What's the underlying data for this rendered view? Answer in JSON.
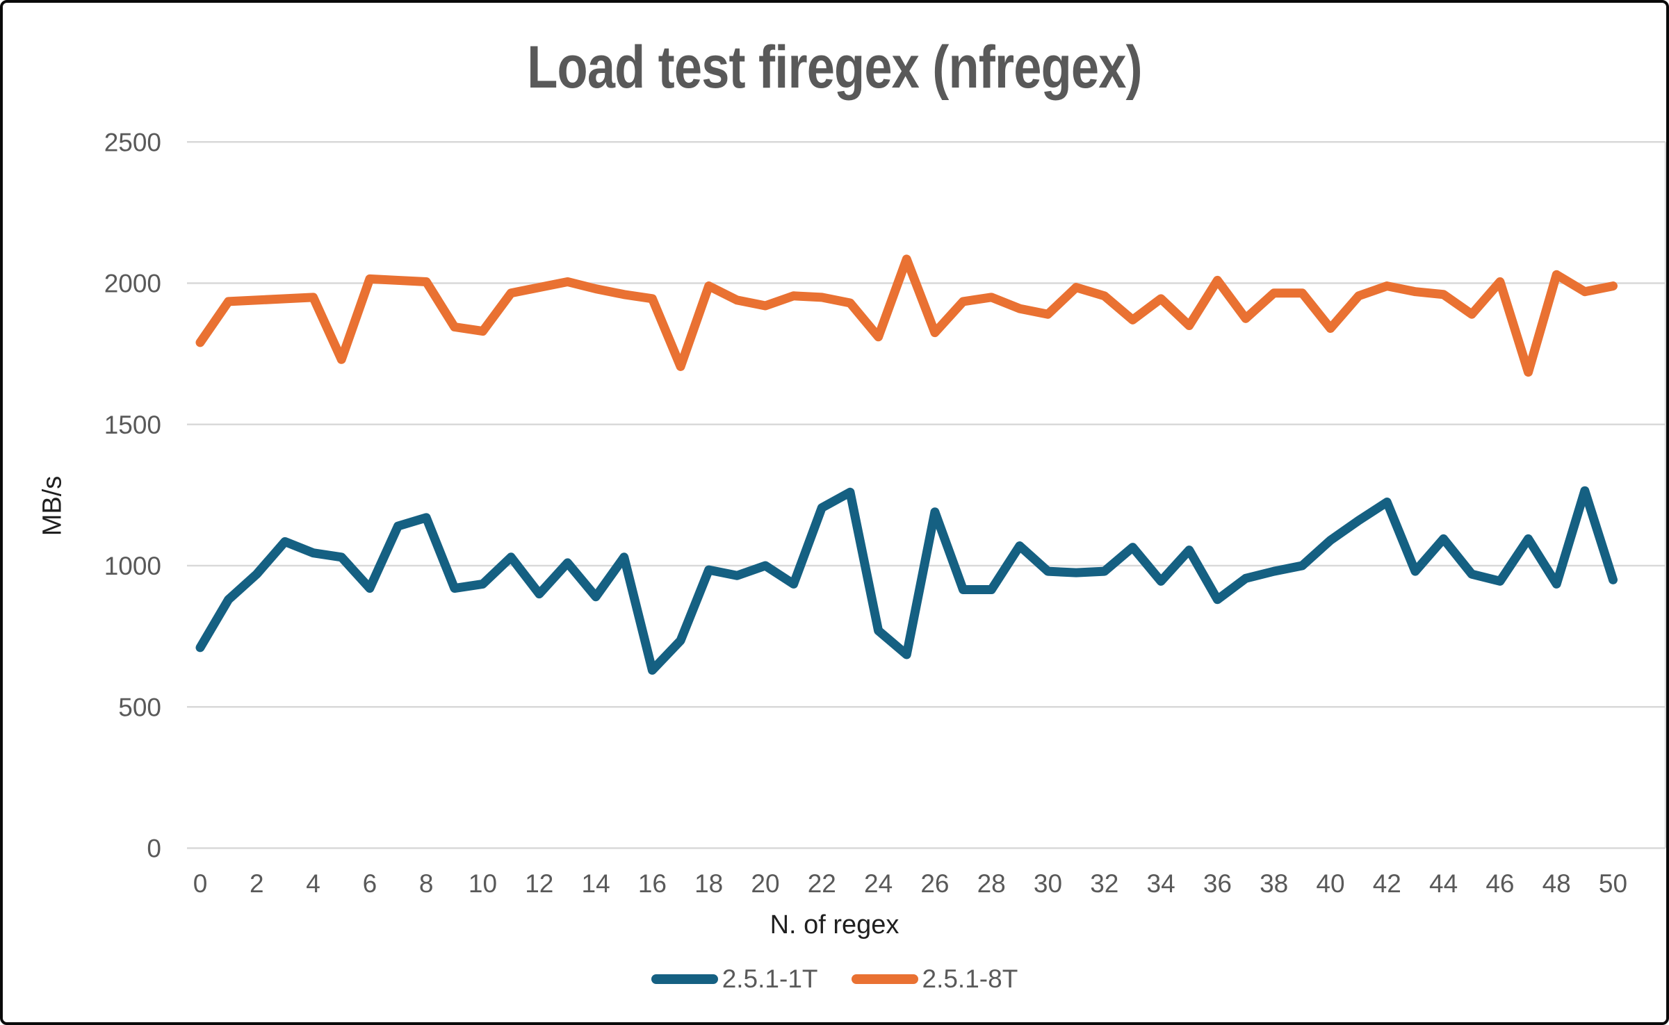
{
  "title": "Load test firegex (nfregex)",
  "colors": {
    "series_1t": "#156082",
    "series_8t": "#E97132",
    "gridline": "#D9D9D9",
    "tick_label": "#595959",
    "axis_title": "#1f1f1f",
    "title": "#595959",
    "background": "#ffffff",
    "frame_border": "#0a0a0a"
  },
  "chart_data": {
    "type": "line",
    "title": "Load test firegex (nfregex)",
    "xlabel": "N. of regex",
    "ylabel": "MB/s",
    "ylim": [
      0,
      2500
    ],
    "y_ticks": [
      0,
      500,
      1000,
      1500,
      2000,
      2500
    ],
    "x_tick_step": 2,
    "grid": true,
    "legend_position": "bottom",
    "x": [
      0,
      1,
      2,
      3,
      4,
      5,
      6,
      7,
      8,
      9,
      10,
      11,
      12,
      13,
      14,
      15,
      16,
      17,
      18,
      19,
      20,
      21,
      22,
      23,
      24,
      25,
      26,
      27,
      28,
      29,
      30,
      31,
      32,
      33,
      34,
      35,
      36,
      37,
      38,
      39,
      40,
      41,
      42,
      43,
      44,
      45,
      46,
      47,
      48,
      49,
      50
    ],
    "series": [
      {
        "name": "2.5.1-1T",
        "color": "#156082",
        "values": [
          710,
          880,
          970,
          1085,
          1045,
          1030,
          920,
          1140,
          1170,
          920,
          935,
          1030,
          900,
          1010,
          890,
          1030,
          630,
          735,
          985,
          965,
          1000,
          935,
          1205,
          1260,
          770,
          685,
          1190,
          915,
          915,
          1070,
          980,
          975,
          980,
          1065,
          945,
          1055,
          880,
          955,
          980,
          1000,
          1090,
          1160,
          1225,
          980,
          1095,
          970,
          945,
          1095,
          935,
          1265,
          950
        ]
      },
      {
        "name": "2.5.1-8T",
        "color": "#E97132",
        "values": [
          1790,
          1935,
          1940,
          1945,
          1950,
          1730,
          2015,
          2010,
          2005,
          1845,
          1830,
          1965,
          1985,
          2005,
          1980,
          1960,
          1945,
          1705,
          1990,
          1940,
          1920,
          1955,
          1950,
          1930,
          1810,
          2085,
          1825,
          1935,
          1950,
          1910,
          1890,
          1985,
          1955,
          1870,
          1945,
          1850,
          2010,
          1875,
          1965,
          1965,
          1840,
          1955,
          1990,
          1970,
          1960,
          1890,
          2005,
          1685,
          2030,
          1970,
          1990
        ]
      }
    ]
  }
}
